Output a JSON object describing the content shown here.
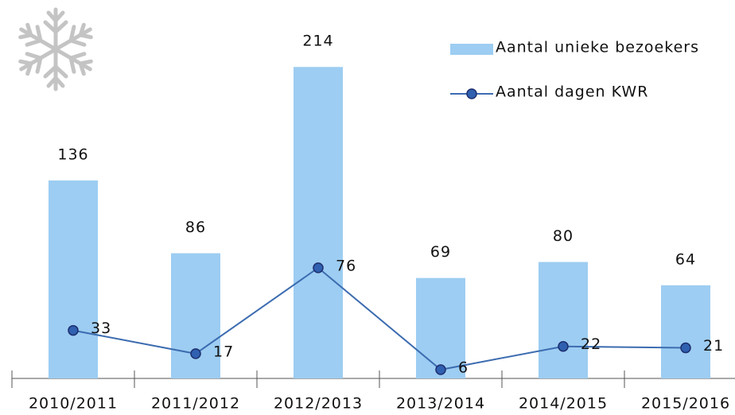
{
  "chart_data": {
    "type": "bar",
    "categories": [
      "2010/2011",
      "2011/2012",
      "2012/2013",
      "2013/2014",
      "2014/2015",
      "2015/2016"
    ],
    "series": [
      {
        "name": "Aantal unieke bezoekers",
        "type": "bar",
        "color": "#9dcdf2",
        "values": [
          136,
          86,
          214,
          69,
          80,
          64
        ]
      },
      {
        "name": "Aantal dagen KWR",
        "type": "line",
        "color": "#3c6cb0",
        "values": [
          33,
          17,
          76,
          6,
          22,
          21
        ]
      }
    ],
    "ylim": [
      0,
      260
    ],
    "legend": "top-right"
  }
}
